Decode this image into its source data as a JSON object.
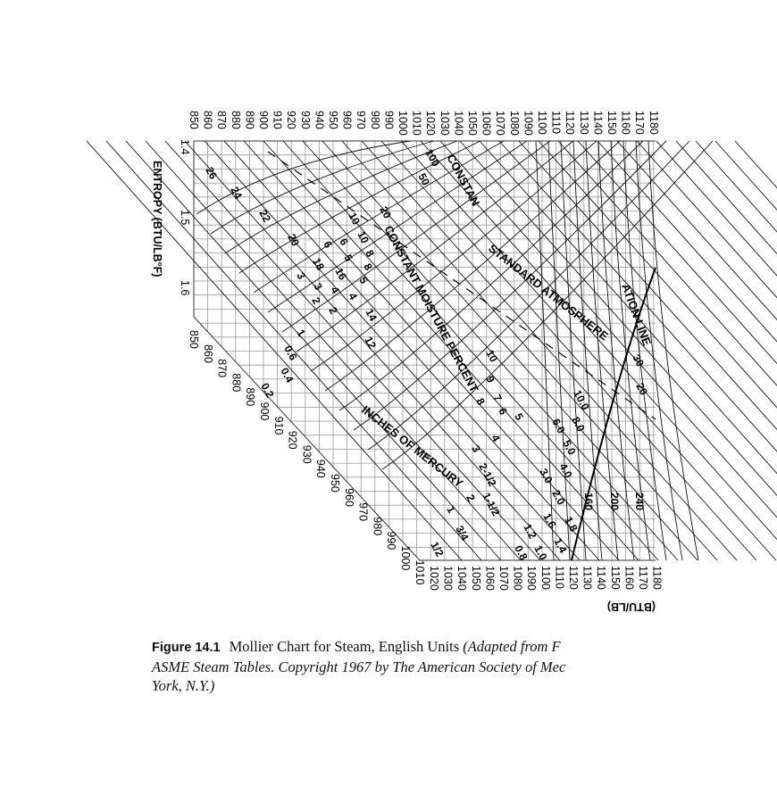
{
  "figure": {
    "number": "Figure 14.1",
    "title": "Mollier Chart for Steam, English Units",
    "source_line1": "(Adapted from F",
    "source_line2": "ASME Steam Tables. Copyright 1967 by The American Society of Mec",
    "source_line3": "York, N.Y.)"
  },
  "chart_labels": {
    "entropy_axis": "ENTROPY (BTU/LB°F)",
    "enthalpy_axis": "(BTU/LB)",
    "entropy_ticks": [
      "1.4",
      "1.5",
      "1.6"
    ],
    "enthalpy_top_ticks": [
      "850",
      "860",
      "870",
      "880",
      "890",
      "900",
      "910",
      "920",
      "930",
      "940",
      "950",
      "960",
      "970",
      "980",
      "990",
      "1000",
      "1010",
      "1020",
      "1030",
      "1040",
      "1050",
      "1060",
      "1070",
      "1080",
      "1090",
      "1100",
      "1110",
      "1120",
      "1130",
      "1140",
      "1150",
      "1160",
      "1170",
      "1180"
    ],
    "enthalpy_diagonal_ticks": [
      "850",
      "860",
      "870",
      "880",
      "890",
      "900",
      "910",
      "920",
      "930",
      "940",
      "950",
      "960",
      "970",
      "980",
      "990",
      "1000",
      "1010"
    ],
    "enthalpy_bottom_ticks": [
      "1020",
      "1030",
      "1040",
      "1050",
      "1060",
      "1070",
      "1080",
      "1090",
      "1100",
      "1110",
      "1120",
      "1130",
      "1140",
      "1150",
      "1160",
      "1170",
      "1180"
    ],
    "moisture_title": "CONSTANT MOISTURE PERCENT",
    "moisture_values": [
      "26",
      "24",
      "22",
      "20",
      "18",
      "16",
      "14",
      "12",
      "10",
      "8",
      "6",
      "5",
      "4",
      "3",
      "2"
    ],
    "atmosphere_label": "STANDARD ATMOSPHERE",
    "mercury_label": "INCHES OF MERCURY",
    "saturation_label": "ATION LINE",
    "pressure_top_label": "CONSTAN",
    "pressure_values_a": [
      "100",
      "50",
      "20",
      "10",
      "8",
      "6",
      "5",
      "4",
      "3",
      "2",
      "1",
      "0.6",
      "0.4",
      "0.2"
    ],
    "mercury_values": [
      "10",
      "9",
      "8",
      "7",
      "6",
      "5",
      "4",
      "3",
      "2-1/2",
      "2",
      "1-1/2",
      "1",
      "3/4",
      "1/2"
    ],
    "psia_values": [
      "10.0",
      "8.0",
      "6.0",
      "5.0",
      "4.0",
      "3.0",
      "2.0",
      "1.8",
      "1.6",
      "1.4",
      "1.2",
      "1.0",
      "0.8"
    ],
    "superheat_values": [
      "30",
      "20",
      "160",
      "200",
      "240"
    ]
  }
}
